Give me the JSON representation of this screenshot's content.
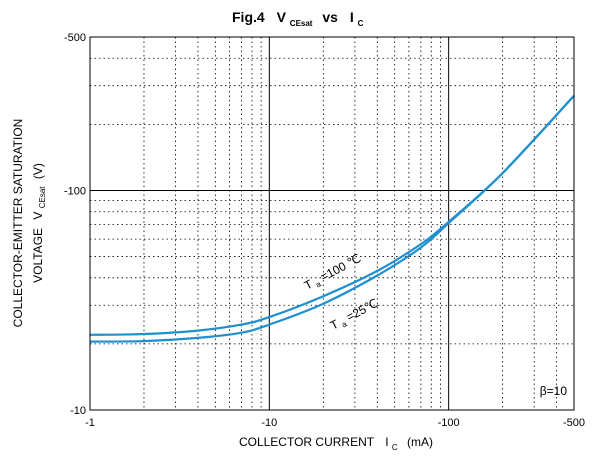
{
  "chart_data": {
    "type": "line",
    "title": {
      "prefix": "Fig.4",
      "v": "V",
      "v_sub": "CEsat",
      "vs": "vs",
      "i": "I",
      "i_sub": "C"
    },
    "xlabel": {
      "text": "COLLECTOR CURRENT",
      "i": "I",
      "i_sub": "C",
      "unit": "(mA)"
    },
    "ylabel": {
      "line1": "COLLECTOR-EMITTER SATURATION",
      "line2_prefix": "VOLTAGE",
      "v": "V",
      "v_sub": "CEsat",
      "unit": "(V)"
    },
    "x_scale": "log",
    "y_scale": "log",
    "xlim": [
      -1,
      -500
    ],
    "ylim": [
      -10,
      -500
    ],
    "x_ticks": [
      -1,
      -10,
      -100,
      -500
    ],
    "x_tick_labels": [
      "-1",
      "-10",
      "-100",
      "-500"
    ],
    "y_ticks": [
      -10,
      -100,
      -500
    ],
    "y_tick_labels": [
      "-10",
      "-100",
      "-500"
    ],
    "grid": "log-dotted",
    "annotation": "β=10",
    "series": [
      {
        "label_t": "T",
        "label_sub": "a",
        "label_rest": "=100 ℃",
        "color": "#1f8fd0",
        "x": [
          -1,
          -2,
          -4,
          -7,
          -10,
          -20,
          -40,
          -70,
          -100,
          -200,
          -500
        ],
        "y": [
          -22,
          -22.2,
          -23,
          -24.5,
          -26.5,
          -33,
          -43,
          -57,
          -72,
          -120,
          -270
        ]
      },
      {
        "label_t": "T",
        "label_sub": "a",
        "label_rest": "=25℃",
        "color": "#1f8fd0",
        "x": [
          -1,
          -2,
          -4,
          -7,
          -10,
          -20,
          -40,
          -70,
          -100,
          -200,
          -500
        ],
        "y": [
          -20.5,
          -20.6,
          -21.3,
          -22.5,
          -24.5,
          -30.5,
          -41,
          -55,
          -71,
          -120,
          -270
        ]
      }
    ]
  }
}
